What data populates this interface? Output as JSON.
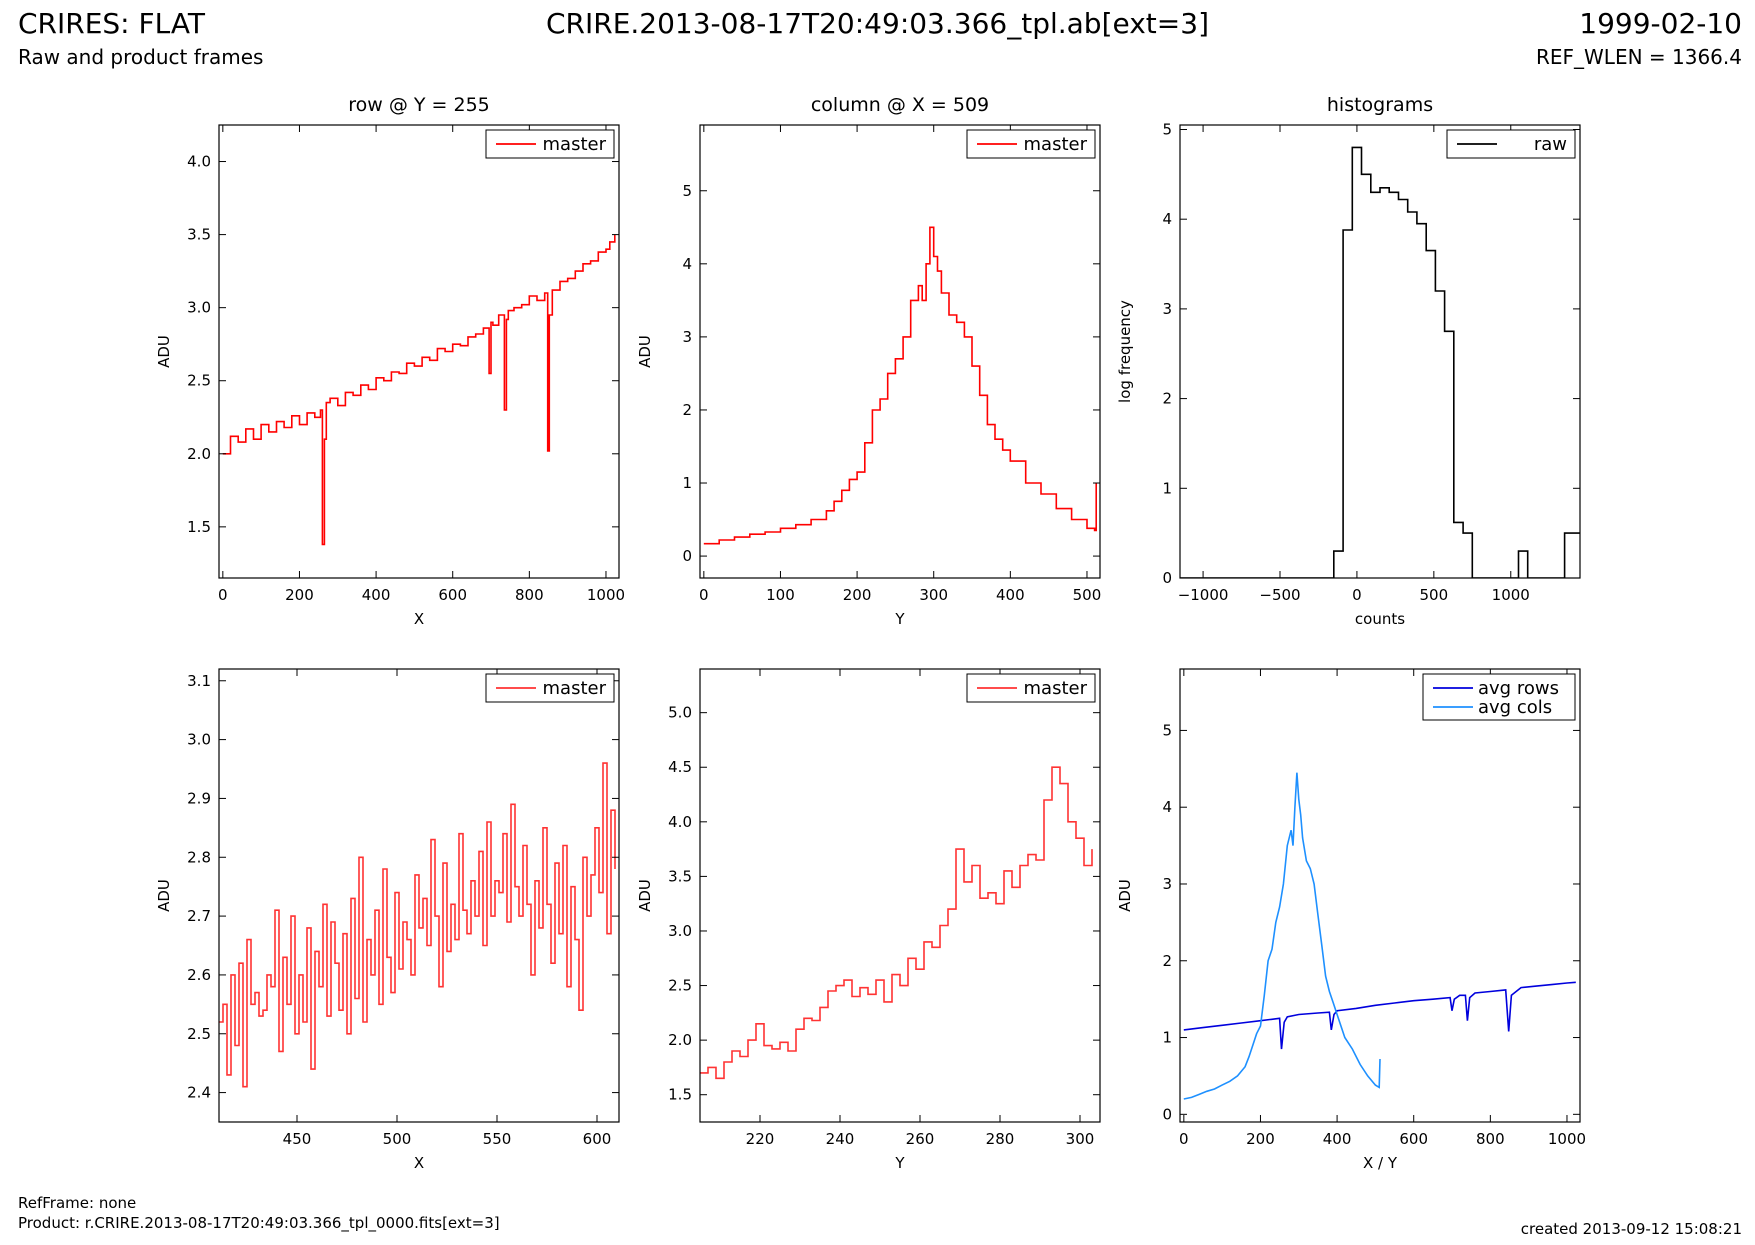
{
  "header": {
    "title": "CRIRES: FLAT",
    "subtitle": "Raw and product frames",
    "file": "CRIRE.2013-08-17T20:49:03.366_tpl.ab[ext=3]",
    "date": "1999-02-10",
    "ref_wlen": "REF_WLEN = 1366.4"
  },
  "footer": {
    "refframe": "RefFrame: none",
    "product": "Product: r.CRIRE.2013-08-17T20:49:03.366_tpl_0000.fits[ext=3]",
    "created": "created 2013-09-12 15:08:21"
  },
  "colors": {
    "master": "#ff0000",
    "master_zoom": "#ff3333",
    "raw": "#000000",
    "avg_rows": "#0000dd",
    "avg_cols": "#1e90ff"
  },
  "chart_data": [
    {
      "type": "line",
      "title": "row @ Y = 255",
      "xlabel": "X",
      "ylabel": "ADU",
      "xlim": [
        -10,
        1034
      ],
      "ylim": [
        1.15,
        4.25
      ],
      "xticks": [
        0,
        200,
        400,
        600,
        800,
        1000
      ],
      "xtick_labels": [
        "0",
        "200",
        "400",
        "600",
        "800",
        "1000"
      ],
      "yticks": [
        1.5,
        2.0,
        2.5,
        3.0,
        3.5,
        4.0
      ],
      "ytick_labels": [
        "1.5",
        "2.0",
        "2.5",
        "3.0",
        "3.5",
        "4.0"
      ],
      "legend": "top-right",
      "series": [
        {
          "name": "master",
          "color": "#ff0000",
          "step": true,
          "x": [
            0,
            20,
            40,
            60,
            80,
            100,
            120,
            140,
            160,
            180,
            200,
            220,
            240,
            255,
            260,
            265,
            270,
            280,
            300,
            320,
            340,
            360,
            380,
            400,
            420,
            440,
            460,
            480,
            500,
            520,
            540,
            560,
            580,
            600,
            620,
            640,
            660,
            680,
            695,
            700,
            705,
            720,
            735,
            740,
            745,
            760,
            780,
            800,
            820,
            840,
            848,
            852,
            860,
            880,
            900,
            920,
            940,
            960,
            980,
            1000,
            1010,
            1023
          ],
          "y": [
            2.0,
            2.12,
            2.08,
            2.17,
            2.1,
            2.2,
            2.15,
            2.22,
            2.18,
            2.26,
            2.2,
            2.28,
            2.25,
            2.3,
            1.38,
            2.1,
            2.35,
            2.38,
            2.33,
            2.42,
            2.4,
            2.47,
            2.44,
            2.52,
            2.5,
            2.56,
            2.55,
            2.62,
            2.6,
            2.66,
            2.64,
            2.72,
            2.7,
            2.75,
            2.74,
            2.8,
            2.82,
            2.86,
            2.55,
            2.9,
            2.88,
            2.95,
            2.3,
            2.92,
            2.98,
            3.0,
            3.02,
            3.08,
            3.05,
            3.1,
            2.02,
            2.95,
            3.12,
            3.18,
            3.2,
            3.25,
            3.3,
            3.32,
            3.38,
            3.4,
            3.45,
            3.5
          ]
        }
      ]
    },
    {
      "type": "line",
      "title": "column @ X = 509",
      "xlabel": "Y",
      "ylabel": "ADU",
      "xlim": [
        -5,
        517
      ],
      "ylim": [
        -0.3,
        5.9
      ],
      "xticks": [
        0,
        100,
        200,
        300,
        400,
        500
      ],
      "xtick_labels": [
        "0",
        "100",
        "200",
        "300",
        "400",
        "500"
      ],
      "yticks": [
        0,
        1,
        2,
        3,
        4,
        5
      ],
      "ytick_labels": [
        "0",
        "1",
        "2",
        "3",
        "4",
        "5"
      ],
      "legend": "top-right",
      "series": [
        {
          "name": "master",
          "color": "#ff0000",
          "step": true,
          "x": [
            0,
            20,
            40,
            60,
            80,
            100,
            120,
            140,
            160,
            170,
            180,
            190,
            200,
            210,
            220,
            230,
            240,
            250,
            260,
            270,
            280,
            285,
            290,
            295,
            300,
            305,
            310,
            320,
            330,
            340,
            350,
            360,
            370,
            380,
            390,
            400,
            420,
            440,
            460,
            480,
            500,
            510,
            512
          ],
          "y": [
            0.17,
            0.22,
            0.26,
            0.3,
            0.33,
            0.38,
            0.43,
            0.5,
            0.62,
            0.75,
            0.9,
            1.05,
            1.15,
            1.55,
            2.0,
            2.15,
            2.5,
            2.7,
            3.0,
            3.5,
            3.7,
            3.5,
            4.0,
            4.5,
            4.1,
            3.9,
            3.6,
            3.3,
            3.2,
            3.0,
            2.6,
            2.2,
            1.8,
            1.6,
            1.45,
            1.3,
            1.0,
            0.85,
            0.65,
            0.5,
            0.38,
            0.35,
            1.0
          ]
        }
      ]
    },
    {
      "type": "line",
      "title": "histograms",
      "xlabel": "counts",
      "ylabel": "log frequency",
      "xlim": [
        -1150,
        1450
      ],
      "ylim": [
        0,
        5.05
      ],
      "xticks": [
        -1000,
        -500,
        0,
        500,
        1000
      ],
      "xtick_labels": [
        "−1000",
        "−500",
        "0",
        "500",
        "1000"
      ],
      "yticks": [
        0,
        1,
        2,
        3,
        4,
        5
      ],
      "ytick_labels": [
        "0",
        "1",
        "2",
        "3",
        "4",
        "5"
      ],
      "legend": "top-right",
      "series": [
        {
          "name": "raw",
          "color": "#000000",
          "step": true,
          "x": [
            -1150,
            -150,
            -90,
            -30,
            30,
            90,
            150,
            210,
            270,
            330,
            390,
            450,
            510,
            570,
            630,
            690,
            750,
            810,
            870,
            930,
            990,
            1050,
            1110,
            1170,
            1230,
            1290,
            1350,
            1410,
            1450
          ],
          "y": [
            0,
            0.3,
            3.88,
            4.8,
            4.5,
            4.3,
            4.35,
            4.3,
            4.22,
            4.08,
            3.95,
            3.65,
            3.2,
            2.75,
            0.62,
            0.5,
            0,
            0,
            0,
            0,
            0,
            0.3,
            0,
            0,
            0,
            0,
            0.5,
            0.5,
            0.5
          ]
        }
      ]
    },
    {
      "type": "line",
      "xlabel": "X",
      "ylabel": "ADU",
      "xlim": [
        411,
        611
      ],
      "ylim": [
        2.35,
        3.12
      ],
      "xticks": [
        450,
        500,
        550,
        600
      ],
      "xtick_labels": [
        "450",
        "500",
        "550",
        "600"
      ],
      "yticks": [
        2.4,
        2.5,
        2.6,
        2.7,
        2.8,
        2.9,
        3.0,
        3.1
      ],
      "ytick_labels": [
        "2.4",
        "2.5",
        "2.6",
        "2.7",
        "2.8",
        "2.9",
        "3.0",
        "3.1"
      ],
      "legend": "top-right",
      "series": [
        {
          "name": "master",
          "color": "#ff3333",
          "step": true,
          "x": [
            411,
            413,
            415,
            417,
            419,
            421,
            423,
            425,
            427,
            429,
            431,
            433,
            435,
            437,
            439,
            441,
            443,
            445,
            447,
            449,
            451,
            453,
            455,
            457,
            459,
            461,
            463,
            465,
            467,
            469,
            471,
            473,
            475,
            477,
            479,
            481,
            483,
            485,
            487,
            489,
            491,
            493,
            495,
            497,
            499,
            501,
            503,
            505,
            507,
            509,
            511,
            513,
            515,
            517,
            519,
            521,
            523,
            525,
            527,
            529,
            531,
            533,
            535,
            537,
            539,
            541,
            543,
            545,
            547,
            549,
            551,
            553,
            555,
            557,
            559,
            561,
            563,
            565,
            567,
            569,
            571,
            573,
            575,
            577,
            579,
            581,
            583,
            585,
            587,
            589,
            591,
            593,
            595,
            597,
            599,
            601,
            603,
            605,
            607,
            609
          ],
          "y": [
            2.52,
            2.55,
            2.43,
            2.6,
            2.48,
            2.62,
            2.41,
            2.66,
            2.55,
            2.57,
            2.53,
            2.54,
            2.6,
            2.58,
            2.71,
            2.47,
            2.63,
            2.55,
            2.7,
            2.5,
            2.6,
            2.52,
            2.68,
            2.44,
            2.64,
            2.58,
            2.72,
            2.53,
            2.69,
            2.62,
            2.54,
            2.67,
            2.5,
            2.73,
            2.56,
            2.8,
            2.52,
            2.66,
            2.6,
            2.71,
            2.55,
            2.78,
            2.63,
            2.57,
            2.74,
            2.61,
            2.69,
            2.66,
            2.6,
            2.77,
            2.68,
            2.73,
            2.65,
            2.83,
            2.7,
            2.58,
            2.79,
            2.64,
            2.72,
            2.66,
            2.84,
            2.71,
            2.67,
            2.76,
            2.7,
            2.81,
            2.65,
            2.86,
            2.7,
            2.76,
            2.74,
            2.84,
            2.69,
            2.89,
            2.75,
            2.7,
            2.82,
            2.72,
            2.6,
            2.76,
            2.68,
            2.85,
            2.72,
            2.62,
            2.79,
            2.67,
            2.82,
            2.58,
            2.75,
            2.66,
            2.54,
            2.8,
            2.7,
            2.77,
            2.85,
            2.74,
            2.96,
            2.67,
            2.88,
            2.78
          ]
        }
      ]
    },
    {
      "type": "line",
      "xlabel": "Y",
      "ylabel": "ADU",
      "xlim": [
        205,
        305
      ],
      "ylim": [
        1.25,
        5.4
      ],
      "xticks": [
        220,
        240,
        260,
        280,
        300
      ],
      "xtick_labels": [
        "220",
        "240",
        "260",
        "280",
        "300"
      ],
      "yticks": [
        1.5,
        2.0,
        2.5,
        3.0,
        3.5,
        4.0,
        4.5,
        5.0
      ],
      "ytick_labels": [
        "1.5",
        "2.0",
        "2.5",
        "3.0",
        "3.5",
        "4.0",
        "4.5",
        "5.0"
      ],
      "legend": "top-right",
      "series": [
        {
          "name": "master",
          "color": "#ff3333",
          "step": true,
          "x": [
            205,
            207,
            209,
            211,
            213,
            215,
            217,
            219,
            221,
            223,
            225,
            227,
            229,
            231,
            233,
            235,
            237,
            239,
            241,
            243,
            245,
            247,
            249,
            251,
            253,
            255,
            257,
            259,
            261,
            263,
            265,
            267,
            269,
            271,
            273,
            275,
            277,
            279,
            281,
            283,
            285,
            287,
            289,
            291,
            293,
            295,
            297,
            299,
            301,
            303
          ],
          "y": [
            1.7,
            1.75,
            1.65,
            1.8,
            1.9,
            1.85,
            2.0,
            2.15,
            1.95,
            1.92,
            1.98,
            1.9,
            2.1,
            2.2,
            2.18,
            2.3,
            2.45,
            2.5,
            2.55,
            2.4,
            2.48,
            2.42,
            2.55,
            2.35,
            2.6,
            2.5,
            2.75,
            2.65,
            2.9,
            2.85,
            3.05,
            3.2,
            3.75,
            3.45,
            3.6,
            3.3,
            3.35,
            3.25,
            3.55,
            3.4,
            3.6,
            3.7,
            3.65,
            4.2,
            4.5,
            4.35,
            4.0,
            3.85,
            3.6,
            3.75
          ]
        }
      ]
    },
    {
      "type": "line",
      "xlabel": "X / Y",
      "ylabel": "ADU",
      "xlim": [
        -10,
        1034
      ],
      "ylim": [
        -0.1,
        5.8
      ],
      "xticks": [
        0,
        200,
        400,
        600,
        800,
        1000
      ],
      "xtick_labels": [
        "0",
        "200",
        "400",
        "600",
        "800",
        "1000"
      ],
      "yticks": [
        0,
        1,
        2,
        3,
        4,
        5
      ],
      "ytick_labels": [
        "0",
        "1",
        "2",
        "3",
        "4",
        "5"
      ],
      "legend": "top-right",
      "series": [
        {
          "name": "avg rows",
          "color": "#0000dd",
          "step": false,
          "x": [
            0,
            50,
            100,
            150,
            200,
            250,
            255,
            262,
            270,
            300,
            350,
            380,
            385,
            392,
            400,
            450,
            500,
            550,
            600,
            650,
            695,
            700,
            706,
            720,
            735,
            740,
            746,
            760,
            800,
            840,
            848,
            855,
            880,
            920,
            960,
            1000,
            1023
          ],
          "y": [
            1.1,
            1.13,
            1.16,
            1.19,
            1.22,
            1.25,
            0.85,
            1.2,
            1.27,
            1.3,
            1.32,
            1.33,
            1.1,
            1.3,
            1.35,
            1.38,
            1.42,
            1.45,
            1.48,
            1.5,
            1.52,
            1.35,
            1.5,
            1.55,
            1.55,
            1.22,
            1.52,
            1.58,
            1.6,
            1.62,
            1.08,
            1.55,
            1.65,
            1.67,
            1.69,
            1.71,
            1.72
          ]
        },
        {
          "name": "avg cols",
          "color": "#1e90ff",
          "step": false,
          "x": [
            0,
            20,
            40,
            60,
            80,
            100,
            120,
            140,
            160,
            170,
            180,
            190,
            200,
            210,
            220,
            230,
            240,
            250,
            260,
            270,
            280,
            285,
            290,
            295,
            300,
            305,
            310,
            320,
            330,
            340,
            350,
            360,
            370,
            380,
            390,
            400,
            420,
            440,
            460,
            480,
            500,
            510,
            512
          ],
          "y": [
            0.2,
            0.22,
            0.26,
            0.3,
            0.33,
            0.38,
            0.43,
            0.5,
            0.62,
            0.75,
            0.9,
            1.05,
            1.15,
            1.55,
            2.0,
            2.15,
            2.5,
            2.7,
            3.0,
            3.5,
            3.7,
            3.5,
            4.0,
            4.45,
            4.1,
            3.9,
            3.6,
            3.3,
            3.2,
            3.0,
            2.6,
            2.2,
            1.8,
            1.6,
            1.45,
            1.3,
            1.0,
            0.85,
            0.65,
            0.5,
            0.38,
            0.35,
            0.72
          ]
        }
      ]
    }
  ]
}
